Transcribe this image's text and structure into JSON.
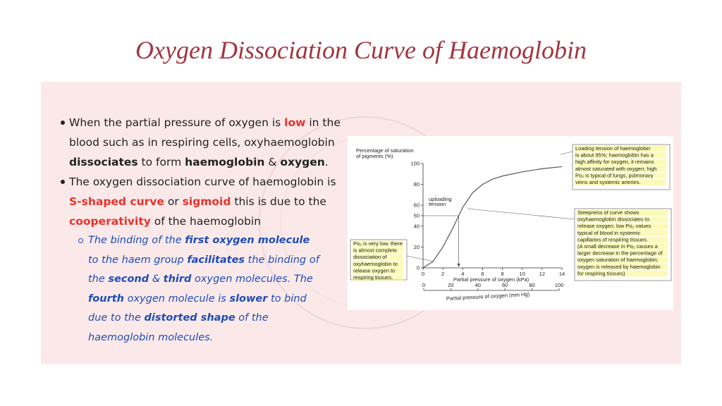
{
  "title": "Oxygen Dissociation Curve of Haemoglobin",
  "bullets": [
    {
      "level": 1,
      "runs": [
        {
          "text": "When the partial pressure of oxygen is "
        },
        {
          "text": "low",
          "bold": true,
          "color": "#e8322b"
        },
        {
          "text": " in the blood such as in respiring cells, oxyhaemoglobin "
        },
        {
          "text": "dissociates",
          "bold": true
        },
        {
          "text": " to form "
        },
        {
          "text": "haemoglobin",
          "bold": true
        },
        {
          "text": " & "
        },
        {
          "text": "oxygen",
          "bold": true
        },
        {
          "text": "."
        }
      ]
    },
    {
      "level": 1,
      "runs": [
        {
          "text": "The oxygen dissociation curve of haemoglobin is "
        },
        {
          "text": "S-shaped curve",
          "bold": true,
          "color": "#e8322b"
        },
        {
          "text": " or "
        },
        {
          "text": "sigmoid",
          "bold": true,
          "color": "#e8322b"
        },
        {
          "text": " this is due to the "
        },
        {
          "text": "cooperativity",
          "bold": true,
          "color": "#e8322b"
        },
        {
          "text": " of the haemoglobin"
        }
      ]
    },
    {
      "level": 2,
      "runs": [
        {
          "text": "The binding of the "
        },
        {
          "text": "first oxygen molecule",
          "bold": true
        },
        {
          "text": " to the haem group "
        },
        {
          "text": "facilitates",
          "bold": true
        },
        {
          "text": " the binding of the "
        },
        {
          "text": "second",
          "bold": true
        },
        {
          "text": " & "
        },
        {
          "text": "third",
          "bold": true
        },
        {
          "text": " oxygen molecules. The "
        },
        {
          "text": "fourth",
          "bold": true
        },
        {
          "text": " oxygen molecule is "
        },
        {
          "text": "slower",
          "bold": true
        },
        {
          "text": " to bind due to the "
        },
        {
          "text": "distorted shape",
          "bold": true
        },
        {
          "text": " of the haemoglobin molecules."
        }
      ]
    }
  ],
  "figure": {
    "type": "line",
    "ylabel": [
      "Percentage of saturation",
      "of pigments (%)"
    ],
    "xlabel": "Partial pressure of oxygen (kPa)",
    "x2label": "Partial pressure of oxygen (mm Hg)",
    "xlim": [
      0,
      14
    ],
    "ylim": [
      0,
      100
    ],
    "x2lim": [
      0,
      100
    ],
    "xticks": [
      0,
      2,
      4,
      6,
      8,
      10,
      12,
      14
    ],
    "yticks": [
      0,
      20,
      40,
      50,
      60,
      80,
      100
    ],
    "x2ticks": [
      0,
      20,
      40,
      60,
      80,
      100
    ],
    "curve": {
      "x": [
        0,
        1,
        2,
        3,
        3.6,
        4,
        5,
        6,
        7,
        8,
        10,
        12,
        14
      ],
      "y": [
        0,
        6,
        20,
        38,
        50,
        58,
        72,
        80,
        85,
        88,
        92,
        95,
        97
      ]
    },
    "tension_label": [
      "uploading",
      "tension"
    ],
    "notes": [
      {
        "lines": [
          "Loading tension of haemoglobin",
          "is about 95%; haemoglobin has a",
          "high affinity for oxygen, it remains",
          "almost saturated with oxygen; high",
          "Po₂ is typical of lungs, pulmonary",
          "veins and systemic arteries."
        ]
      },
      {
        "lines": [
          "Steepness of curve shows",
          "oxyhaemoglobin dissociates to",
          "release oxygen; low Po₂ values",
          "typical of blood in systemic",
          "capillaries of respiring tissues.",
          "(A small decrease in Po₂ causes a",
          "larger decrease in the percentage of",
          "oxygen saturation of haemoglobin;",
          "oxygen is released by haemoglobin",
          "for respiring tissues)"
        ]
      },
      {
        "lines": [
          "Po₂ is very low, there",
          "is almost complete",
          "dissociation of",
          "oxyhaemoglobin to",
          "release oxygen to",
          "respiring tissues."
        ]
      }
    ]
  }
}
